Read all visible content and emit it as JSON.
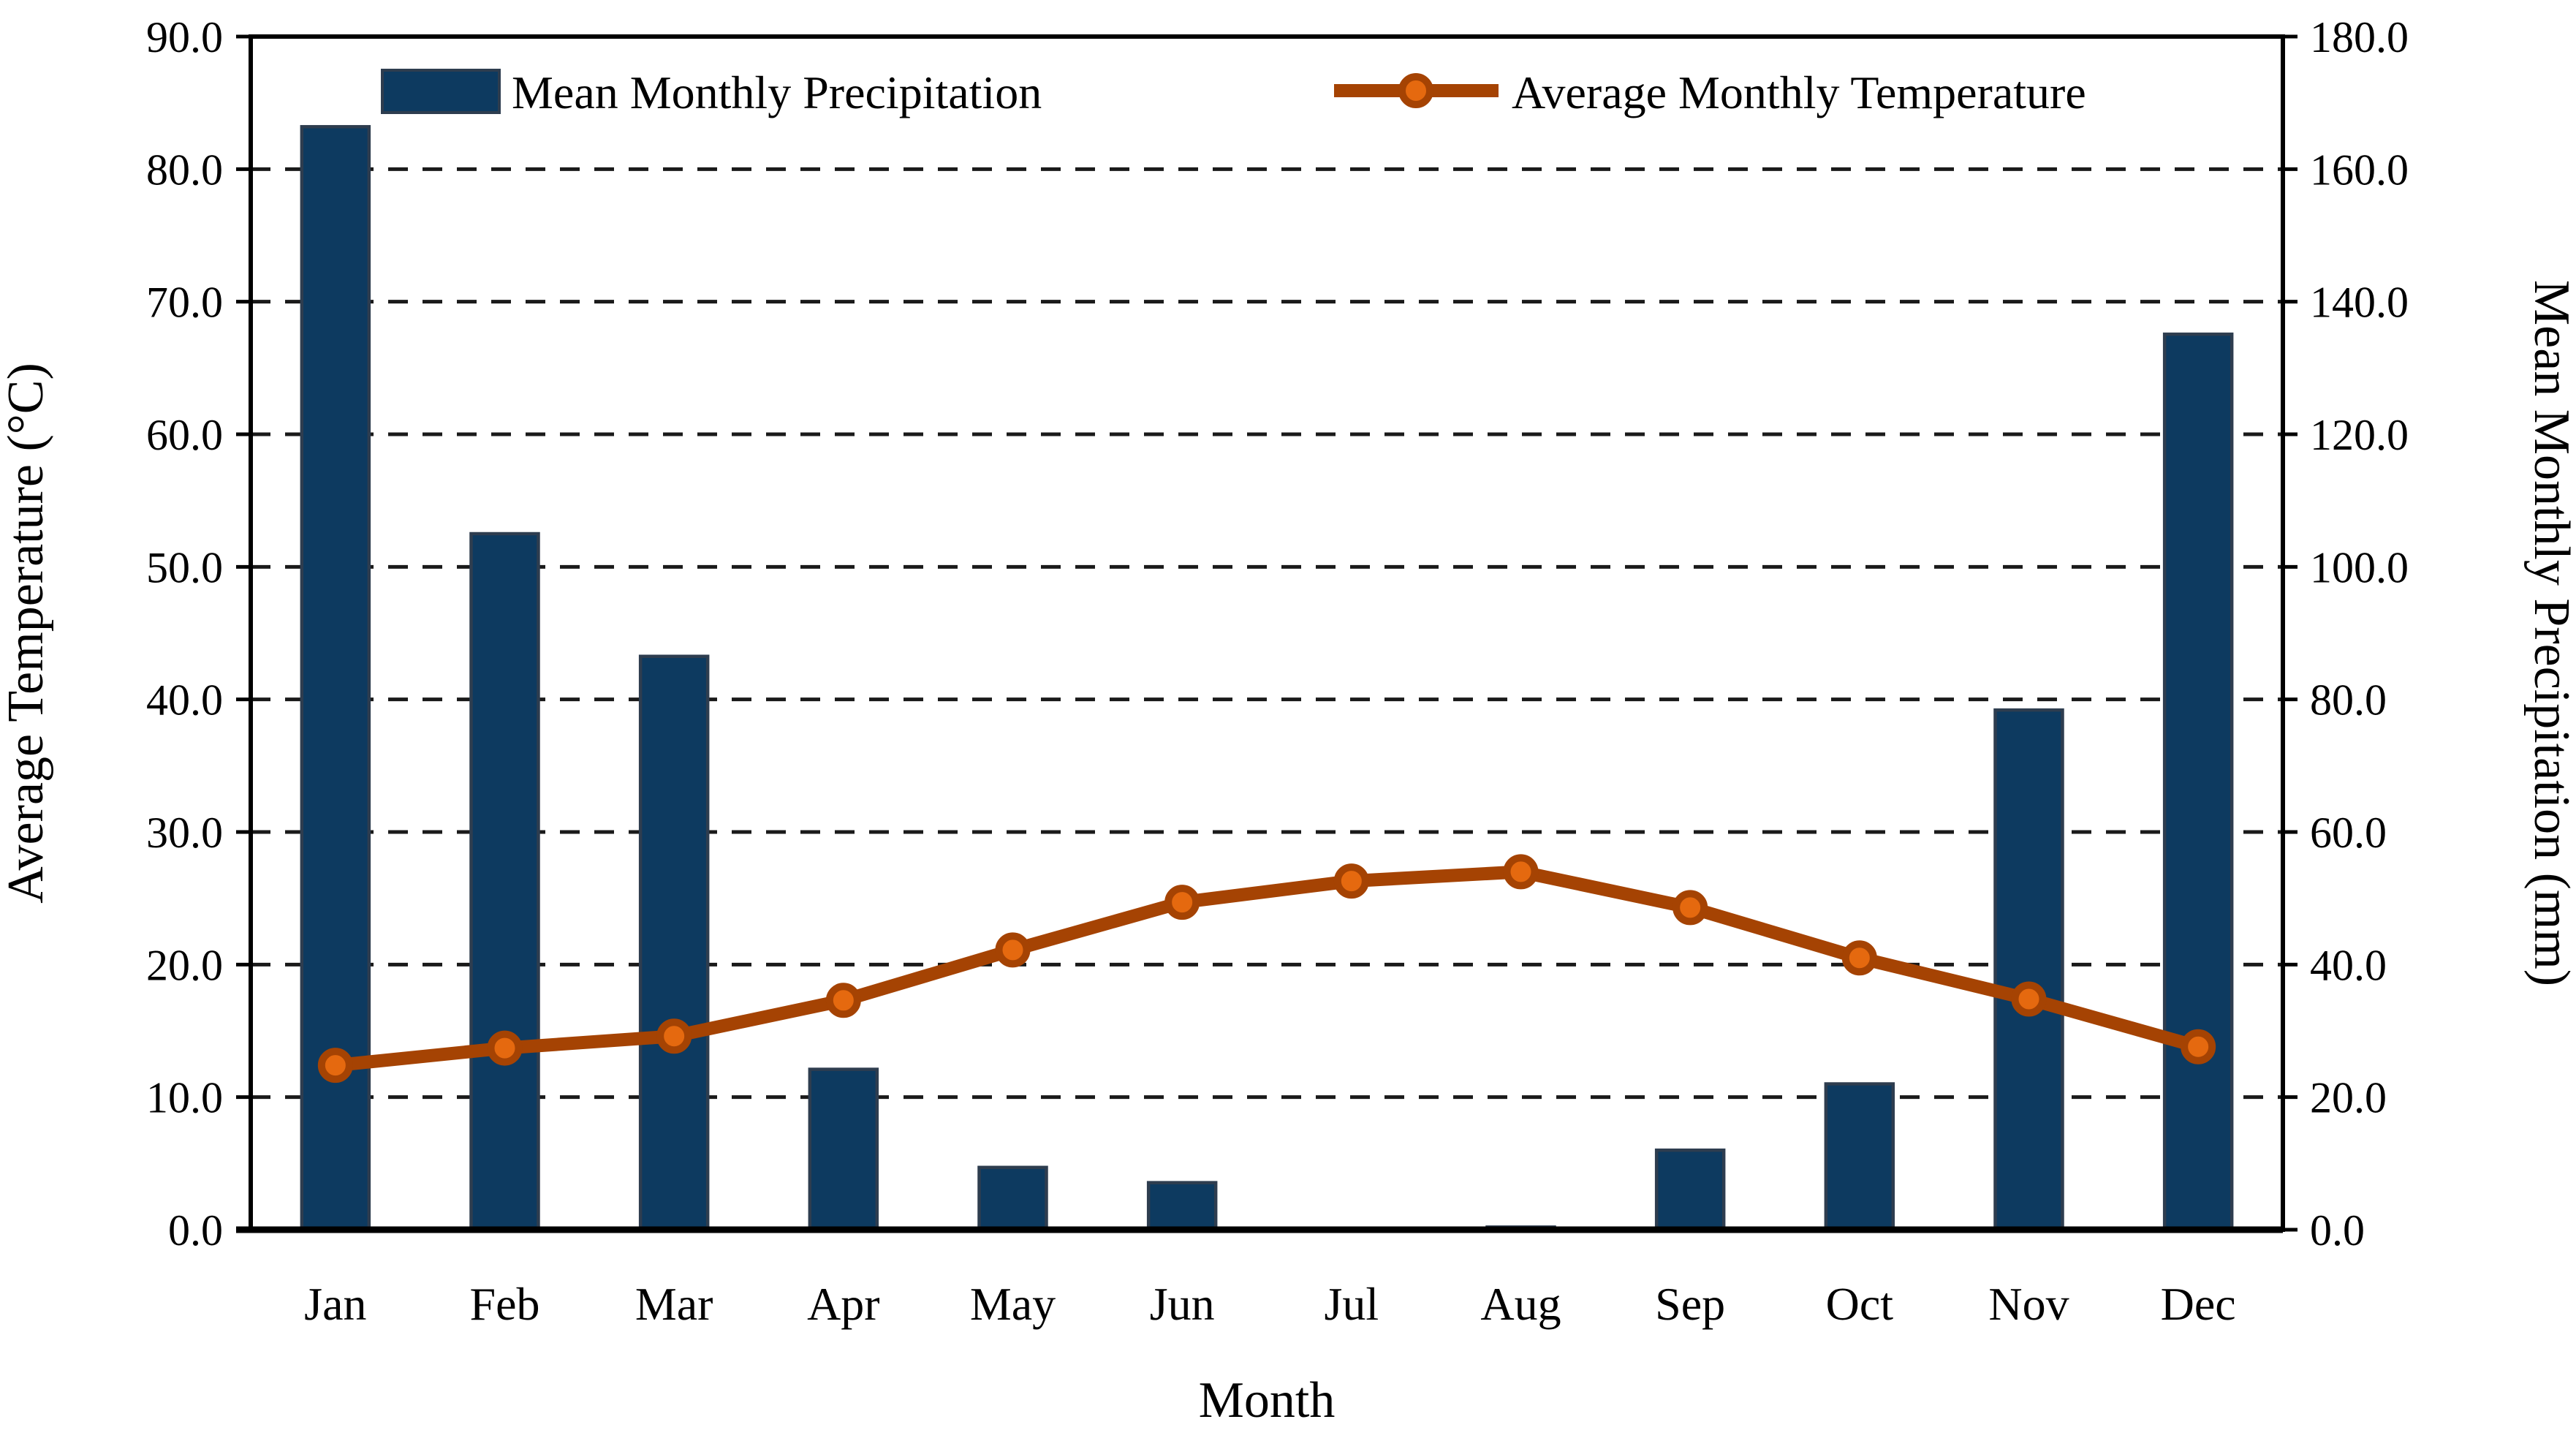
{
  "chart_data": {
    "type": "combo-bar-line",
    "categories": [
      "Jan",
      "Feb",
      "Mar",
      "Apr",
      "May",
      "Jun",
      "Jul",
      "Aug",
      "Sep",
      "Oct",
      "Nov",
      "Dec"
    ],
    "series": [
      {
        "name": "Mean Monthly Precipitation",
        "type": "bar",
        "axis": "right",
        "unit": "mm",
        "values": [
          166.4,
          105.0,
          86.5,
          24.2,
          9.4,
          7.1,
          0.0,
          0.4,
          12.0,
          22.0,
          78.4,
          135.1
        ]
      },
      {
        "name": "Average Monthly Temperature",
        "type": "line",
        "axis": "left",
        "unit": "°C",
        "values": [
          12.4,
          13.7,
          14.6,
          17.3,
          21.1,
          24.7,
          26.3,
          27.0,
          24.3,
          20.5,
          17.4,
          13.8
        ]
      }
    ],
    "xlabel": "Month",
    "ylabel_left": "Average Temperature (°C)",
    "ylabel_right": "Mean Monthly Precipitation (mm)",
    "ylim_left": [
      0,
      90
    ],
    "ytick_step_left": 10,
    "left_tick_labels": [
      "0.0",
      "10.0",
      "20.0",
      "30.0",
      "40.0",
      "50.0",
      "60.0",
      "70.0",
      "80.0",
      "90.0"
    ],
    "ylim_right": [
      0,
      180
    ],
    "ytick_step_right": 20,
    "right_tick_labels": [
      "0.0",
      "20.0",
      "40.0",
      "60.0",
      "80.0",
      "100.0",
      "120.0",
      "140.0",
      "160.0",
      "180.0"
    ],
    "grid": "horizontal-dashed",
    "legend_position": "top-inside",
    "colors": {
      "bar_fill": "#0d3a60",
      "bar_border": "#2e3d4f",
      "line": "#a54303",
      "marker_fill": "#e5690f",
      "marker_ring": "#a54303",
      "grid": "#1a1a1a",
      "frame": "#000000",
      "background": "#ffffff",
      "text": "#000000"
    }
  }
}
